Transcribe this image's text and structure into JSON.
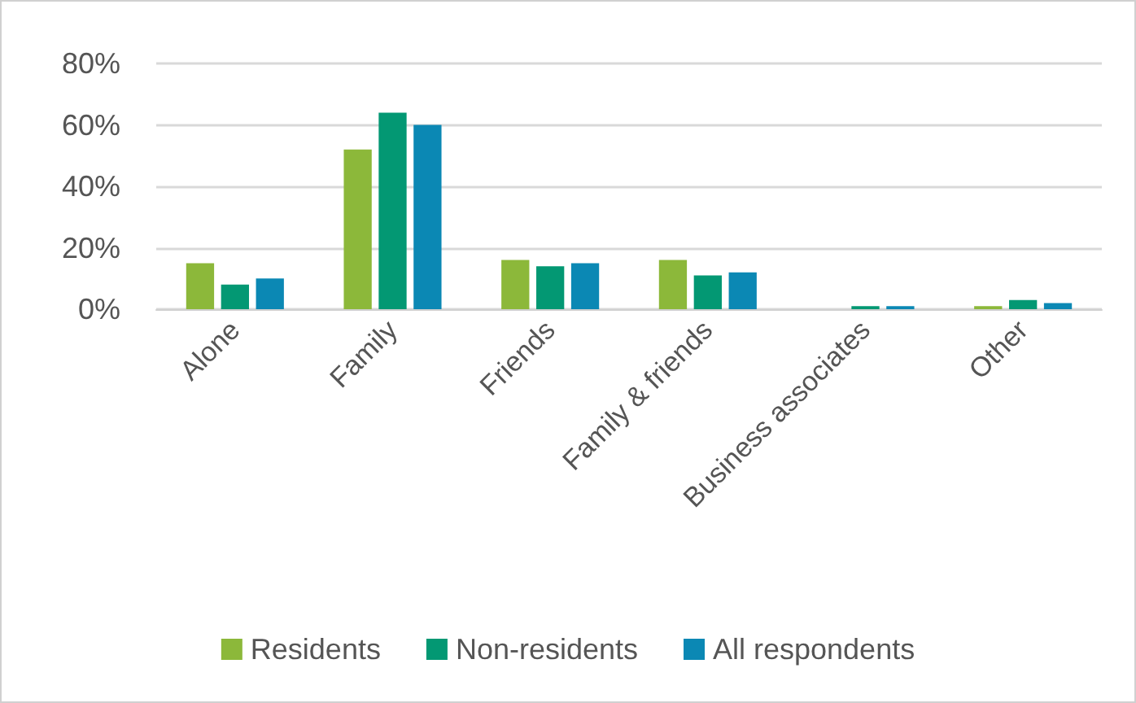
{
  "chart_data": {
    "type": "bar",
    "categories": [
      "Alone",
      "Family",
      "Friends",
      "Family & friends",
      "Business associates",
      "Other"
    ],
    "series": [
      {
        "name": "Residents",
        "color": "#8cb83a",
        "values": [
          15,
          52,
          16,
          16,
          0,
          1
        ]
      },
      {
        "name": "Non-residents",
        "color": "#039873",
        "values": [
          8,
          64,
          14,
          11,
          1,
          3
        ]
      },
      {
        "name": "All respondents",
        "color": "#0b88b4",
        "values": [
          10,
          60,
          15,
          12,
          1,
          2
        ]
      }
    ],
    "ylim": [
      0,
      80
    ],
    "yticks": [
      {
        "value": 0,
        "label": "0%"
      },
      {
        "value": 20,
        "label": "20%"
      },
      {
        "value": 40,
        "label": "40%"
      },
      {
        "value": 60,
        "label": "60%"
      },
      {
        "value": 80,
        "label": "80%"
      }
    ],
    "grid": "y",
    "legend": "bottom"
  }
}
